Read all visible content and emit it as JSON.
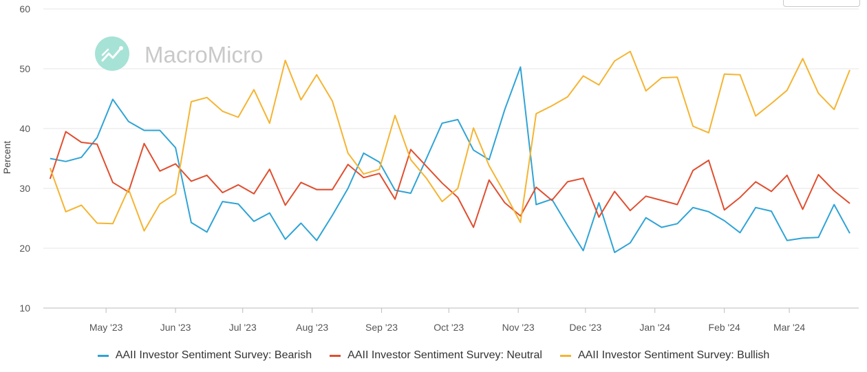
{
  "watermark": {
    "text": "MacroMicro"
  },
  "chart_data": {
    "type": "line",
    "ylabel": "Percent",
    "ylim": [
      10,
      60
    ],
    "yticks": [
      "10",
      "20",
      "30",
      "40",
      "50",
      "60"
    ],
    "x": [
      "2023-04-06",
      "2023-04-13",
      "2023-04-20",
      "2023-04-27",
      "2023-05-04",
      "2023-05-11",
      "2023-05-18",
      "2023-05-25",
      "2023-06-01",
      "2023-06-08",
      "2023-06-15",
      "2023-06-22",
      "2023-06-29",
      "2023-07-06",
      "2023-07-13",
      "2023-07-20",
      "2023-07-27",
      "2023-08-03",
      "2023-08-10",
      "2023-08-17",
      "2023-08-24",
      "2023-08-31",
      "2023-09-07",
      "2023-09-14",
      "2023-09-21",
      "2023-09-28",
      "2023-10-05",
      "2023-10-12",
      "2023-10-19",
      "2023-10-26",
      "2023-11-02",
      "2023-11-09",
      "2023-11-16",
      "2023-11-23",
      "2023-11-30",
      "2023-12-07",
      "2023-12-14",
      "2023-12-21",
      "2023-12-28",
      "2024-01-04",
      "2024-01-11",
      "2024-01-18",
      "2024-01-25",
      "2024-02-01",
      "2024-02-08",
      "2024-02-15",
      "2024-02-22",
      "2024-02-29",
      "2024-03-07",
      "2024-03-14",
      "2024-03-21",
      "2024-03-28"
    ],
    "xticks": [
      {
        "date": "2023-05-01",
        "label": "May '23"
      },
      {
        "date": "2023-06-01",
        "label": "Jun '23"
      },
      {
        "date": "2023-07-01",
        "label": "Jul '23"
      },
      {
        "date": "2023-08-01",
        "label": "Aug '23"
      },
      {
        "date": "2023-09-01",
        "label": "Sep '23"
      },
      {
        "date": "2023-10-01",
        "label": "Oct '23"
      },
      {
        "date": "2023-11-01",
        "label": "Nov '23"
      },
      {
        "date": "2023-12-01",
        "label": "Dec '23"
      },
      {
        "date": "2024-01-01",
        "label": "Jan '24"
      },
      {
        "date": "2024-02-01",
        "label": "Feb '24"
      },
      {
        "date": "2024-03-01",
        "label": "Mar '24"
      }
    ],
    "series": [
      {
        "name": "AAII Investor Sentiment Survey: Bearish",
        "color": "#2ea3d6",
        "values": [
          35.0,
          34.5,
          35.2,
          38.5,
          44.9,
          41.2,
          39.7,
          39.7,
          36.8,
          24.3,
          22.7,
          27.8,
          27.4,
          24.5,
          25.9,
          21.5,
          24.2,
          21.3,
          25.5,
          30.0,
          35.9,
          34.4,
          29.7,
          29.2,
          35.0,
          40.9,
          41.5,
          36.4,
          34.8,
          43.2,
          50.3,
          27.3,
          28.2,
          23.8,
          19.6,
          27.6,
          19.3,
          20.9,
          25.1,
          23.5,
          24.1,
          26.8,
          26.1,
          24.6,
          22.6,
          26.8,
          26.2,
          21.3,
          21.7,
          21.8,
          27.3,
          22.5
        ]
      },
      {
        "name": "AAII Investor Sentiment Survey: Neutral",
        "color": "#e04e2f",
        "values": [
          31.6,
          39.5,
          37.7,
          37.4,
          31.0,
          29.4,
          37.5,
          32.9,
          34.1,
          31.2,
          32.2,
          29.3,
          30.6,
          29.1,
          33.2,
          27.2,
          31.0,
          29.8,
          29.8,
          34.0,
          31.8,
          32.5,
          28.2,
          36.5,
          33.7,
          30.9,
          28.5,
          23.5,
          31.4,
          27.6,
          25.4,
          30.2,
          28.0,
          31.1,
          31.7,
          25.2,
          29.5,
          26.3,
          28.7,
          28.0,
          27.3,
          33.0,
          34.7,
          26.4,
          28.5,
          31.1,
          29.5,
          32.2,
          26.5,
          32.3,
          29.6,
          27.5
        ]
      },
      {
        "name": "AAII Investor Sentiment Survey: Bullish",
        "color": "#f5b431",
        "values": [
          33.4,
          26.1,
          27.2,
          24.2,
          24.1,
          29.9,
          22.9,
          27.4,
          29.1,
          44.5,
          45.2,
          42.9,
          41.9,
          46.5,
          40.9,
          51.4,
          44.8,
          49.0,
          44.6,
          35.9,
          32.4,
          33.2,
          42.2,
          34.8,
          31.7,
          27.8,
          30.0,
          40.1,
          33.8,
          29.2,
          24.3,
          42.5,
          43.8,
          45.3,
          48.8,
          47.3,
          51.3,
          52.9,
          46.3,
          48.5,
          48.6,
          40.4,
          39.3,
          49.1,
          49.0,
          42.1,
          44.2,
          46.4,
          51.7,
          45.9,
          43.2,
          49.8
        ]
      }
    ]
  }
}
